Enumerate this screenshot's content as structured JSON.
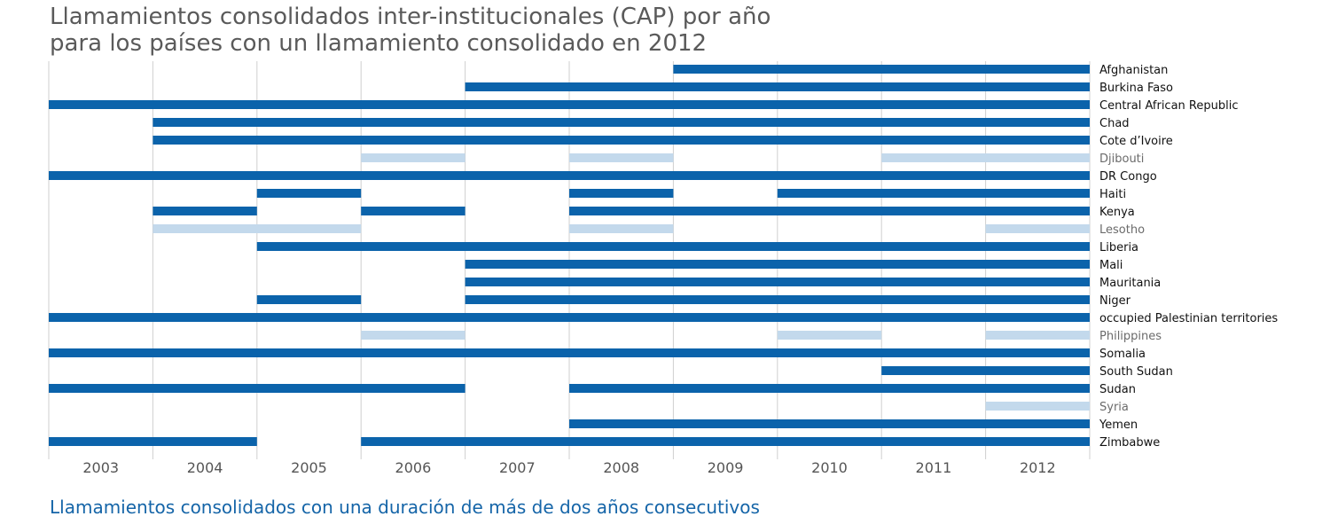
{
  "title_lines": [
    "Llamamientos consolidados inter-institucionales (CAP) por año",
    "para los países con un llamamiento consolidado en 2012"
  ],
  "footnote": "Llamamientos consolidados con una duración de más de dos años consecutivos",
  "colors": {
    "long_appeal": "#0b63ab",
    "short_appeal": "#c3d9ec",
    "label_long": "#111111",
    "label_short": "#6b6b6b",
    "grid": "#cfcfcf",
    "title": "#5a5a5a",
    "footnote": "#1565a8"
  },
  "chart_data": {
    "type": "timeline",
    "title": "Llamamientos consolidados inter-institucionales (CAP) por año para los países con un llamamiento consolidado en 2012",
    "xlabel": "",
    "ylabel": "",
    "years": [
      "2003",
      "2004",
      "2005",
      "2006",
      "2007",
      "2008",
      "2009",
      "2010",
      "2011",
      "2012"
    ],
    "grid": true,
    "legend_note": "Llamamientos consolidados con una duración de más de dos años consecutivos",
    "countries": [
      {
        "name": "Afghanistan",
        "long": true,
        "periods": [
          [
            2009,
            2012
          ]
        ]
      },
      {
        "name": "Burkina Faso",
        "long": true,
        "periods": [
          [
            2007,
            2012
          ]
        ]
      },
      {
        "name": "Central African Republic",
        "long": true,
        "periods": [
          [
            2003,
            2012
          ]
        ]
      },
      {
        "name": "Chad",
        "long": true,
        "periods": [
          [
            2004,
            2012
          ]
        ]
      },
      {
        "name": "Cote d’Ivoire",
        "long": true,
        "periods": [
          [
            2004,
            2012
          ]
        ]
      },
      {
        "name": "Djibouti",
        "long": false,
        "periods": [
          [
            2006,
            2006
          ],
          [
            2008,
            2008
          ],
          [
            2011,
            2012
          ]
        ]
      },
      {
        "name": "DR Congo",
        "long": true,
        "periods": [
          [
            2003,
            2012
          ]
        ]
      },
      {
        "name": "Haiti",
        "long": true,
        "periods": [
          [
            2005,
            2005
          ],
          [
            2008,
            2008
          ],
          [
            2010,
            2012
          ]
        ]
      },
      {
        "name": "Kenya",
        "long": true,
        "periods": [
          [
            2004,
            2004
          ],
          [
            2006,
            2006
          ],
          [
            2008,
            2012
          ]
        ]
      },
      {
        "name": "Lesotho",
        "long": false,
        "periods": [
          [
            2004,
            2005
          ],
          [
            2008,
            2008
          ],
          [
            2012,
            2012
          ]
        ]
      },
      {
        "name": "Liberia",
        "long": true,
        "periods": [
          [
            2005,
            2012
          ]
        ]
      },
      {
        "name": "Mali",
        "long": true,
        "periods": [
          [
            2007,
            2012
          ]
        ]
      },
      {
        "name": "Mauritania",
        "long": true,
        "periods": [
          [
            2007,
            2012
          ]
        ]
      },
      {
        "name": "Niger",
        "long": true,
        "periods": [
          [
            2005,
            2005
          ],
          [
            2007,
            2012
          ]
        ]
      },
      {
        "name": "occupied Palestinian territories",
        "long": true,
        "periods": [
          [
            2003,
            2012
          ]
        ]
      },
      {
        "name": "Philippines",
        "long": false,
        "periods": [
          [
            2006,
            2006
          ],
          [
            2010,
            2010
          ],
          [
            2012,
            2012
          ]
        ]
      },
      {
        "name": "Somalia",
        "long": true,
        "periods": [
          [
            2003,
            2012
          ]
        ]
      },
      {
        "name": "South Sudan",
        "long": true,
        "periods": [
          [
            2011,
            2012
          ]
        ]
      },
      {
        "name": "Sudan",
        "long": true,
        "periods": [
          [
            2003,
            2006
          ],
          [
            2008,
            2012
          ]
        ]
      },
      {
        "name": "Syria",
        "long": false,
        "periods": [
          [
            2012,
            2012
          ]
        ]
      },
      {
        "name": "Yemen",
        "long": true,
        "periods": [
          [
            2008,
            2012
          ]
        ]
      },
      {
        "name": "Zimbabwe",
        "long": true,
        "periods": [
          [
            2003,
            2004
          ],
          [
            2006,
            2012
          ]
        ]
      }
    ]
  }
}
